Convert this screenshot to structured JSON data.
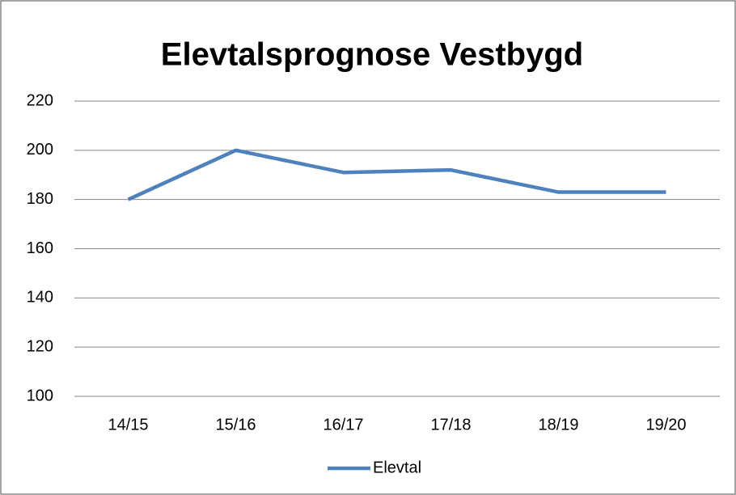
{
  "chart_data": {
    "type": "line",
    "title": "Elevtalsprognose Vestbygd",
    "categories": [
      "14/15",
      "15/16",
      "16/17",
      "17/18",
      "18/19",
      "19/20"
    ],
    "series": [
      {
        "name": "Elevtal",
        "color": "#4f81bd",
        "values": [
          180,
          200,
          191,
          192,
          183,
          183
        ]
      }
    ],
    "ylim": [
      100,
      220
    ],
    "yticks": [
      100,
      120,
      140,
      160,
      180,
      200,
      220
    ],
    "grid": true,
    "legend": "bottom"
  }
}
